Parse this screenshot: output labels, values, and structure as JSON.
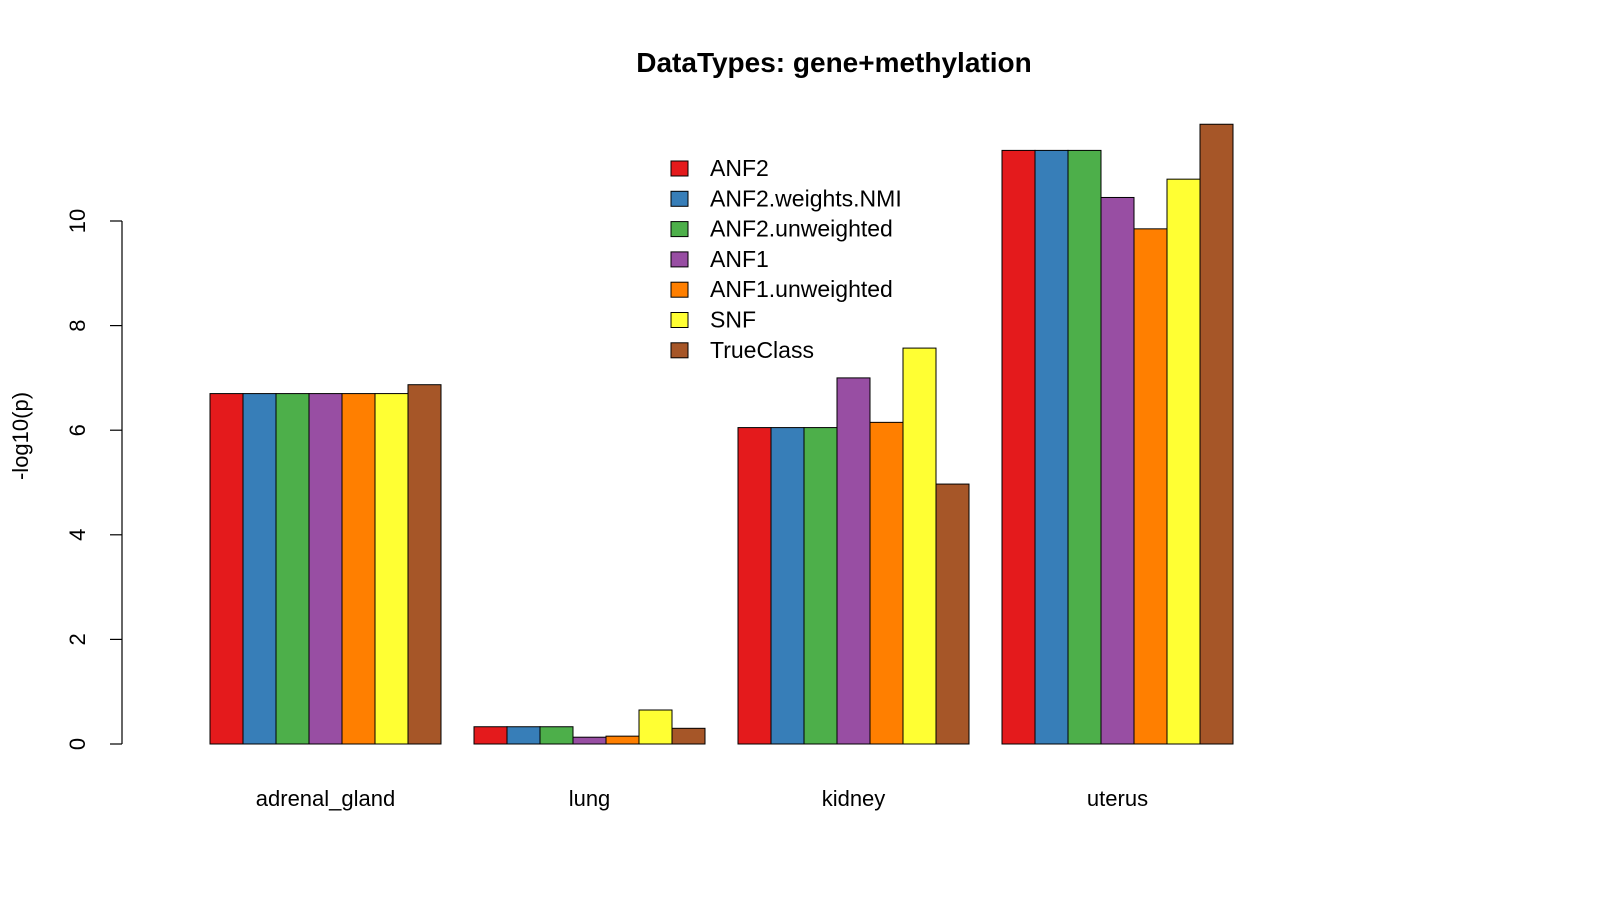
{
  "chart_data": {
    "type": "bar",
    "title": "DataTypes: gene+methylation",
    "xlabel": "",
    "ylabel": "-log10(p)",
    "ylim": [
      0,
      12
    ],
    "yticks": [
      "0",
      "2",
      "4",
      "6",
      "8",
      "10"
    ],
    "grid": false,
    "legend_position": "top-center",
    "categories": [
      "adrenal_gland",
      "lung",
      "kidney",
      "uterus"
    ],
    "series": [
      {
        "name": "ANF2",
        "color": "#e41a1c",
        "values": [
          6.7,
          0.33,
          6.05,
          11.35
        ]
      },
      {
        "name": "ANF2.weights.NMI",
        "color": "#377eb8",
        "values": [
          6.7,
          0.33,
          6.05,
          11.35
        ]
      },
      {
        "name": "ANF2.unweighted",
        "color": "#4daf4a",
        "values": [
          6.7,
          0.33,
          6.05,
          11.35
        ]
      },
      {
        "name": "ANF1",
        "color": "#984ea3",
        "values": [
          6.7,
          0.13,
          7.0,
          10.45
        ]
      },
      {
        "name": "ANF1.unweighted",
        "color": "#ff7f00",
        "values": [
          6.7,
          0.15,
          6.15,
          9.85
        ]
      },
      {
        "name": "SNF",
        "color": "#ffff33",
        "values": [
          6.7,
          0.65,
          7.57,
          10.8
        ]
      },
      {
        "name": "TrueClass",
        "color": "#a65628",
        "values": [
          6.87,
          0.3,
          4.97,
          11.85
        ]
      }
    ]
  }
}
